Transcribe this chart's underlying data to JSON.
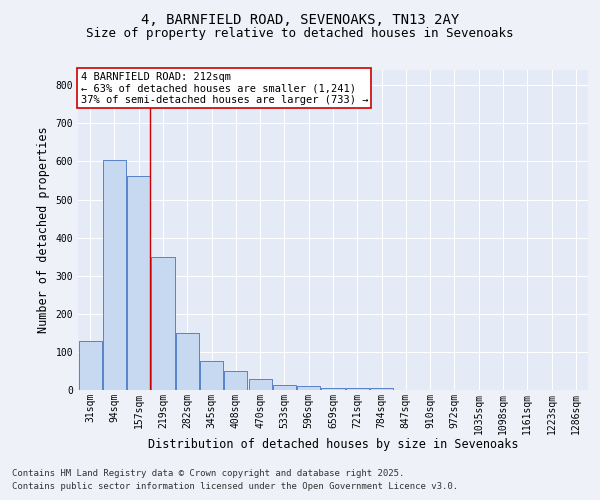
{
  "title1": "4, BARNFIELD ROAD, SEVENOAKS, TN13 2AY",
  "title2": "Size of property relative to detached houses in Sevenoaks",
  "xlabel": "Distribution of detached houses by size in Sevenoaks",
  "ylabel": "Number of detached properties",
  "categories": [
    "31sqm",
    "94sqm",
    "157sqm",
    "219sqm",
    "282sqm",
    "345sqm",
    "408sqm",
    "470sqm",
    "533sqm",
    "596sqm",
    "659sqm",
    "721sqm",
    "784sqm",
    "847sqm",
    "910sqm",
    "972sqm",
    "1035sqm",
    "1098sqm",
    "1161sqm",
    "1223sqm",
    "1286sqm"
  ],
  "values": [
    128,
    605,
    563,
    350,
    150,
    75,
    50,
    30,
    13,
    10,
    5,
    5,
    5,
    0,
    0,
    0,
    0,
    0,
    0,
    0,
    0
  ],
  "bar_color": "#c6d9f0",
  "bar_edge_color": "#4472c4",
  "property_line_bar_index": 2,
  "property_line_color": "#cc0000",
  "annotation_text": "4 BARNFIELD ROAD: 212sqm\n← 63% of detached houses are smaller (1,241)\n37% of semi-detached houses are larger (733) →",
  "annotation_box_color": "#ffffff",
  "annotation_box_edge": "#cc0000",
  "footer1": "Contains HM Land Registry data © Crown copyright and database right 2025.",
  "footer2": "Contains public sector information licensed under the Open Government Licence v3.0.",
  "ylim": [
    0,
    840
  ],
  "yticks": [
    0,
    100,
    200,
    300,
    400,
    500,
    600,
    700,
    800
  ],
  "background_color": "#eef2f8",
  "plot_bg_color": "#e4eaf6",
  "grid_color": "#ffffff",
  "title_fontsize": 10,
  "subtitle_fontsize": 9,
  "axis_label_fontsize": 8.5,
  "tick_fontsize": 7,
  "annot_fontsize": 7.5,
  "footer_fontsize": 6.5
}
